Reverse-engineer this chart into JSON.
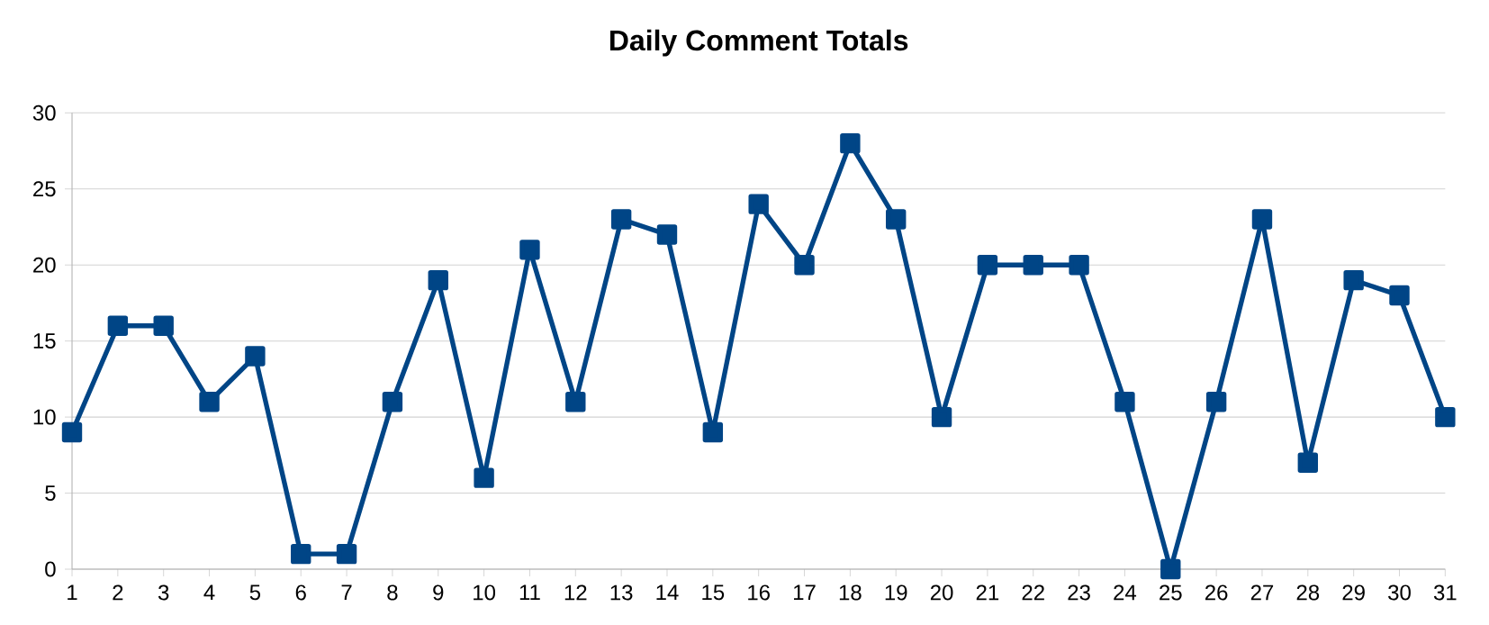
{
  "chart_data": {
    "type": "line",
    "title": "Daily Comment Totals",
    "categories": [
      "1",
      "2",
      "3",
      "4",
      "5",
      "6",
      "7",
      "8",
      "9",
      "10",
      "11",
      "12",
      "13",
      "14",
      "15",
      "16",
      "17",
      "18",
      "19",
      "20",
      "21",
      "22",
      "23",
      "24",
      "25",
      "26",
      "27",
      "28",
      "29",
      "30",
      "31"
    ],
    "values": [
      9,
      16,
      16,
      11,
      14,
      1,
      1,
      11,
      19,
      6,
      21,
      11,
      23,
      22,
      9,
      24,
      20,
      28,
      23,
      10,
      20,
      20,
      20,
      11,
      0,
      11,
      23,
      7,
      19,
      18,
      10
    ],
    "color": "#004586",
    "ylim": [
      0,
      30
    ],
    "yticks": [
      0,
      5,
      10,
      15,
      20,
      25,
      30
    ],
    "grid": "y",
    "marker": "square",
    "line_style": "solid"
  }
}
